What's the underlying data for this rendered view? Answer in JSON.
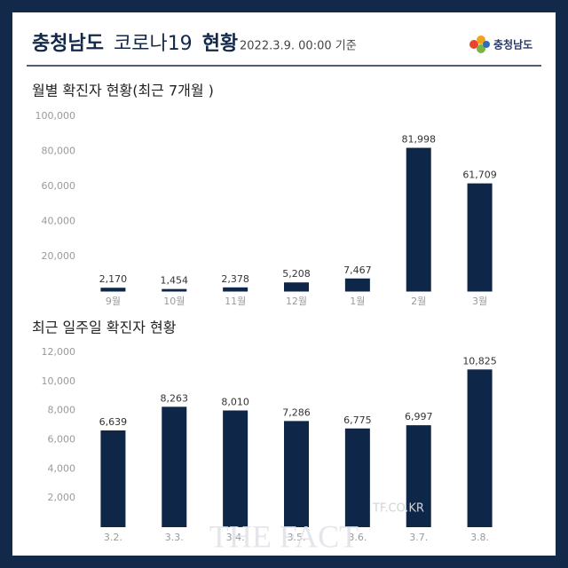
{
  "header": {
    "title_parts": [
      "충청남도",
      "코로나19",
      "현황"
    ],
    "date": "2022.3.9. 00:00 기준",
    "logo": "충청남도"
  },
  "watermark": {
    "site": "TF.CO.KR",
    "brand": "THE FACT"
  },
  "chart_data": [
    {
      "type": "bar",
      "title": "월별 확진자 현황(최근 7개월 )",
      "categories": [
        "9월",
        "10월",
        "11월",
        "12월",
        "1월",
        "2월",
        "3월"
      ],
      "values": [
        2170,
        1454,
        2378,
        5208,
        7467,
        81998,
        61709
      ],
      "value_labels": [
        "2,170",
        "1,454",
        "2,378",
        "5,208",
        "7,467",
        "81,998",
        "61,709"
      ],
      "color": "#0e2647",
      "ylim": [
        0,
        100000
      ],
      "yticks": [
        {
          "value": 20000,
          "label": "20,000"
        },
        {
          "value": 40000,
          "label": "40,000"
        },
        {
          "value": 60000,
          "label": "60,000"
        },
        {
          "value": 80000,
          "label": "80,000"
        },
        {
          "value": 100000,
          "label": "100,000"
        }
      ],
      "grid": false
    },
    {
      "type": "bar",
      "title": "최근 일주일 확진자 현황",
      "categories": [
        "3.2.",
        "3.3.",
        "3.4.",
        "3.5.",
        "3.6.",
        "3.7.",
        "3.8."
      ],
      "values": [
        6639,
        8263,
        8010,
        7286,
        6775,
        6997,
        10825
      ],
      "value_labels": [
        "6,639",
        "8,263",
        "8,010",
        "7,286",
        "6,775",
        "6,997",
        "10,825"
      ],
      "color": "#0e2647",
      "ylim": [
        0,
        12000
      ],
      "yticks": [
        {
          "value": 2000,
          "label": "2,000"
        },
        {
          "value": 4000,
          "label": "4,000"
        },
        {
          "value": 6000,
          "label": "6,000"
        },
        {
          "value": 8000,
          "label": "8,000"
        },
        {
          "value": 10000,
          "label": "10,000"
        },
        {
          "value": 12000,
          "label": "12,000"
        }
      ],
      "grid": false
    }
  ]
}
